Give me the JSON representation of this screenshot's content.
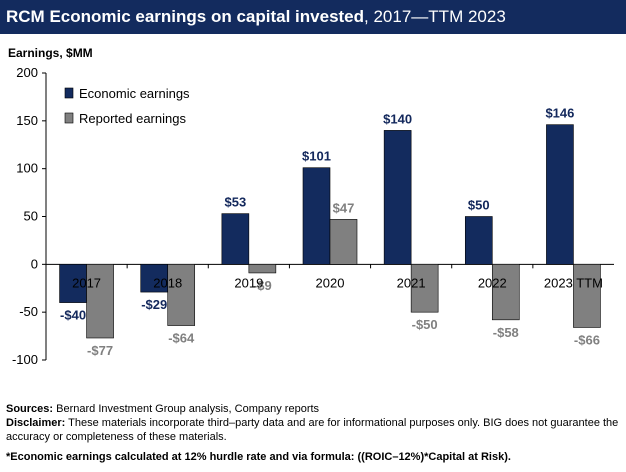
{
  "header": {
    "title_bold": "RCM Economic earnings on capital invested",
    "title_rest": ", 2017—TTM 2023"
  },
  "colors": {
    "economic": "#132b5e",
    "reported": "#808080",
    "title_bg": "#132b5e"
  },
  "chart_data": {
    "type": "bar",
    "title": "RCM Economic earnings on capital invested, 2017—TTM 2023",
    "ylabel": "Earnings, $MM",
    "xlabel": "",
    "ylim": [
      -100,
      200
    ],
    "yticks": [
      200,
      150,
      100,
      50,
      0,
      -50,
      -100
    ],
    "categories": [
      "2017",
      "2018",
      "2019",
      "2020",
      "2021",
      "2022",
      "2023 TTM"
    ],
    "series": [
      {
        "name": "Economic earnings",
        "values": [
          -40,
          -29,
          53,
          101,
          140,
          50,
          146
        ],
        "labels": [
          "-$40",
          "-$29",
          "$53",
          "$101",
          "$140",
          "$50",
          "$146"
        ]
      },
      {
        "name": "Reported earnings",
        "values": [
          -77,
          -64,
          -9,
          47,
          -50,
          -58,
          -66
        ],
        "labels": [
          "-$77",
          "-$64",
          "-$9",
          "$47",
          "-$50",
          "-$58",
          "-$66"
        ]
      }
    ],
    "legend": "top-left",
    "grid": false
  },
  "footnotes": {
    "sources_label": "Sources:",
    "sources_text": " Bernard Investment Group analysis, Company reports",
    "disclaimer_label": "Disclaimer:",
    "disclaimer_text": " These materials incorporate third–party data and are for informational purposes only. BIG does not guarantee the accuracy or completeness of these materials.",
    "formula": "*Economic earnings calculated at 12% hurdle rate and via formula: ((ROIC–12%)*Capital at Risk)."
  }
}
